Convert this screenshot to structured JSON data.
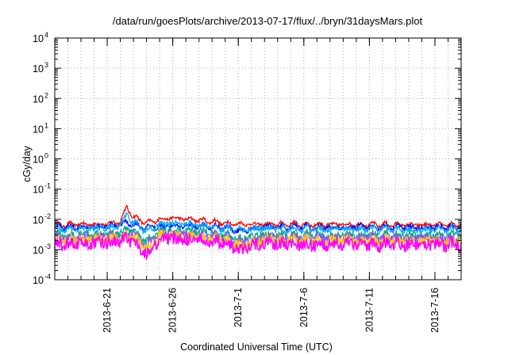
{
  "chart_data": {
    "type": "line",
    "title": "/data/run/goesPlots/archive/2013-07-17/flux/../bryn/31daysMars.plot",
    "xlabel": "Coordinated Universal Time (UTC)",
    "ylabel": "cGy/day",
    "y_scale": "log",
    "ylim": [
      0.0001,
      10000
    ],
    "y_ticks": [
      {
        "base": "10",
        "exp": "-4"
      },
      {
        "base": "10",
        "exp": "-3"
      },
      {
        "base": "10",
        "exp": "-2"
      },
      {
        "base": "10",
        "exp": "-1"
      },
      {
        "base": "10",
        "exp": "0"
      },
      {
        "base": "10",
        "exp": "1"
      },
      {
        "base": "10",
        "exp": "2"
      },
      {
        "base": "10",
        "exp": "3"
      },
      {
        "base": "10",
        "exp": "4"
      }
    ],
    "xlim": [
      "2013-06-17",
      "2013-07-18"
    ],
    "x_ticks": [
      "2013-6-21",
      "2013-6-26",
      "2013-7-1",
      "2013-7-6",
      "2013-7-11",
      "2013-7-16"
    ],
    "grid": true,
    "legend": "none",
    "series": [
      {
        "color": "#ff0000",
        "x": [
          "2013-06-17",
          "2013-06-19",
          "2013-06-21",
          "2013-06-22",
          "2013-06-22T12",
          "2013-06-23",
          "2013-06-24",
          "2013-06-25",
          "2013-06-26",
          "2013-06-28",
          "2013-06-30",
          "2013-07-01",
          "2013-07-03",
          "2013-07-05",
          "2013-07-07",
          "2013-07-09",
          "2013-07-11",
          "2013-07-13",
          "2013-07-15",
          "2013-07-18"
        ],
        "values": [
          0.0065,
          0.0068,
          0.007,
          0.0085,
          0.025,
          0.012,
          0.0075,
          0.01,
          0.011,
          0.0095,
          0.0075,
          0.007,
          0.0068,
          0.007,
          0.0066,
          0.0068,
          0.0066,
          0.0067,
          0.0065,
          0.0066
        ]
      },
      {
        "color": "#0000ff",
        "x": [
          "2013-06-17",
          "2013-06-19",
          "2013-06-21",
          "2013-06-22",
          "2013-06-22T12",
          "2013-06-23",
          "2013-06-24",
          "2013-06-25",
          "2013-06-26",
          "2013-06-28",
          "2013-06-30",
          "2013-07-01",
          "2013-07-03",
          "2013-07-05",
          "2013-07-07",
          "2013-07-09",
          "2013-07-11",
          "2013-07-13",
          "2013-07-15",
          "2013-07-18"
        ],
        "values": [
          0.0055,
          0.0056,
          0.0058,
          0.0062,
          0.0078,
          0.0068,
          0.005,
          0.006,
          0.0062,
          0.006,
          0.0055,
          0.004,
          0.0056,
          0.0055,
          0.0054,
          0.0055,
          0.0054,
          0.0055,
          0.0054,
          0.0055
        ]
      },
      {
        "color": "#00aaff",
        "x": [
          "2013-06-17",
          "2013-06-19",
          "2013-06-21",
          "2013-06-22",
          "2013-06-22T12",
          "2013-06-23",
          "2013-06-24",
          "2013-06-25",
          "2013-06-26",
          "2013-06-28",
          "2013-06-30",
          "2013-07-01",
          "2013-07-03",
          "2013-07-05",
          "2013-07-07",
          "2013-07-09",
          "2013-07-11",
          "2013-07-13",
          "2013-07-15",
          "2013-07-18"
        ],
        "values": [
          0.0048,
          0.005,
          0.0052,
          0.006,
          0.014,
          0.0075,
          0.004,
          0.0068,
          0.0072,
          0.0065,
          0.005,
          0.0045,
          0.005,
          0.0048,
          0.0047,
          0.0048,
          0.0047,
          0.0048,
          0.0047,
          0.0048
        ]
      },
      {
        "color": "#00aa88",
        "x": [
          "2013-06-17",
          "2013-06-19",
          "2013-06-21",
          "2013-06-22",
          "2013-06-22T12",
          "2013-06-23",
          "2013-06-24",
          "2013-06-25",
          "2013-06-26",
          "2013-06-28",
          "2013-06-30",
          "2013-07-01",
          "2013-07-03",
          "2013-07-05",
          "2013-07-07",
          "2013-07-09",
          "2013-07-11",
          "2013-07-13",
          "2013-07-15",
          "2013-07-18"
        ],
        "values": [
          0.003,
          0.0031,
          0.0032,
          0.0035,
          0.0045,
          0.0038,
          0.0018,
          0.004,
          0.0042,
          0.004,
          0.0032,
          0.0022,
          0.0031,
          0.003,
          0.0029,
          0.003,
          0.0029,
          0.003,
          0.0029,
          0.003
        ]
      },
      {
        "color": "#aa44ff",
        "x": [
          "2013-06-17",
          "2013-06-19",
          "2013-06-21",
          "2013-06-22",
          "2013-06-22T12",
          "2013-06-23",
          "2013-06-24",
          "2013-06-25",
          "2013-06-26",
          "2013-06-28",
          "2013-06-30",
          "2013-07-01",
          "2013-07-03",
          "2013-07-05",
          "2013-07-07",
          "2013-07-09",
          "2013-07-11",
          "2013-07-13",
          "2013-07-15",
          "2013-07-18"
        ],
        "values": [
          0.0024,
          0.0025,
          0.0026,
          0.0028,
          0.0035,
          0.003,
          0.0012,
          0.0032,
          0.0033,
          0.003,
          0.0026,
          0.0016,
          0.0025,
          0.0024,
          0.0024,
          0.0024,
          0.0023,
          0.0024,
          0.0023,
          0.0024
        ]
      },
      {
        "color": "#ffcc00",
        "x": [
          "2013-06-17",
          "2013-06-19",
          "2013-06-21",
          "2013-06-22",
          "2013-06-22T12",
          "2013-06-23",
          "2013-06-24",
          "2013-06-25",
          "2013-06-26",
          "2013-06-28",
          "2013-06-30",
          "2013-07-01",
          "2013-07-03",
          "2013-07-05",
          "2013-07-07",
          "2013-07-09",
          "2013-07-11",
          "2013-07-13",
          "2013-07-15",
          "2013-07-18"
        ],
        "values": [
          0.002,
          0.0021,
          0.0022,
          0.0024,
          0.003,
          0.0026,
          0.001,
          0.0028,
          0.0029,
          0.0026,
          0.0022,
          0.0013,
          0.0021,
          0.002,
          0.002,
          0.002,
          0.0019,
          0.002,
          0.0019,
          0.002
        ]
      },
      {
        "color": "#ff00ff",
        "x": [
          "2013-06-17",
          "2013-06-19",
          "2013-06-21",
          "2013-06-22",
          "2013-06-22T12",
          "2013-06-23",
          "2013-06-24",
          "2013-06-25",
          "2013-06-26",
          "2013-06-28",
          "2013-06-30",
          "2013-07-01",
          "2013-07-03",
          "2013-07-05",
          "2013-07-07",
          "2013-07-09",
          "2013-07-11",
          "2013-07-13",
          "2013-07-15",
          "2013-07-18"
        ],
        "values": [
          0.0015,
          0.0016,
          0.0017,
          0.0019,
          0.0024,
          0.002,
          0.0007,
          0.0022,
          0.0023,
          0.002,
          0.0017,
          0.001,
          0.0016,
          0.0015,
          0.0015,
          0.0015,
          0.0014,
          0.0015,
          0.0014,
          0.0015
        ]
      }
    ]
  }
}
